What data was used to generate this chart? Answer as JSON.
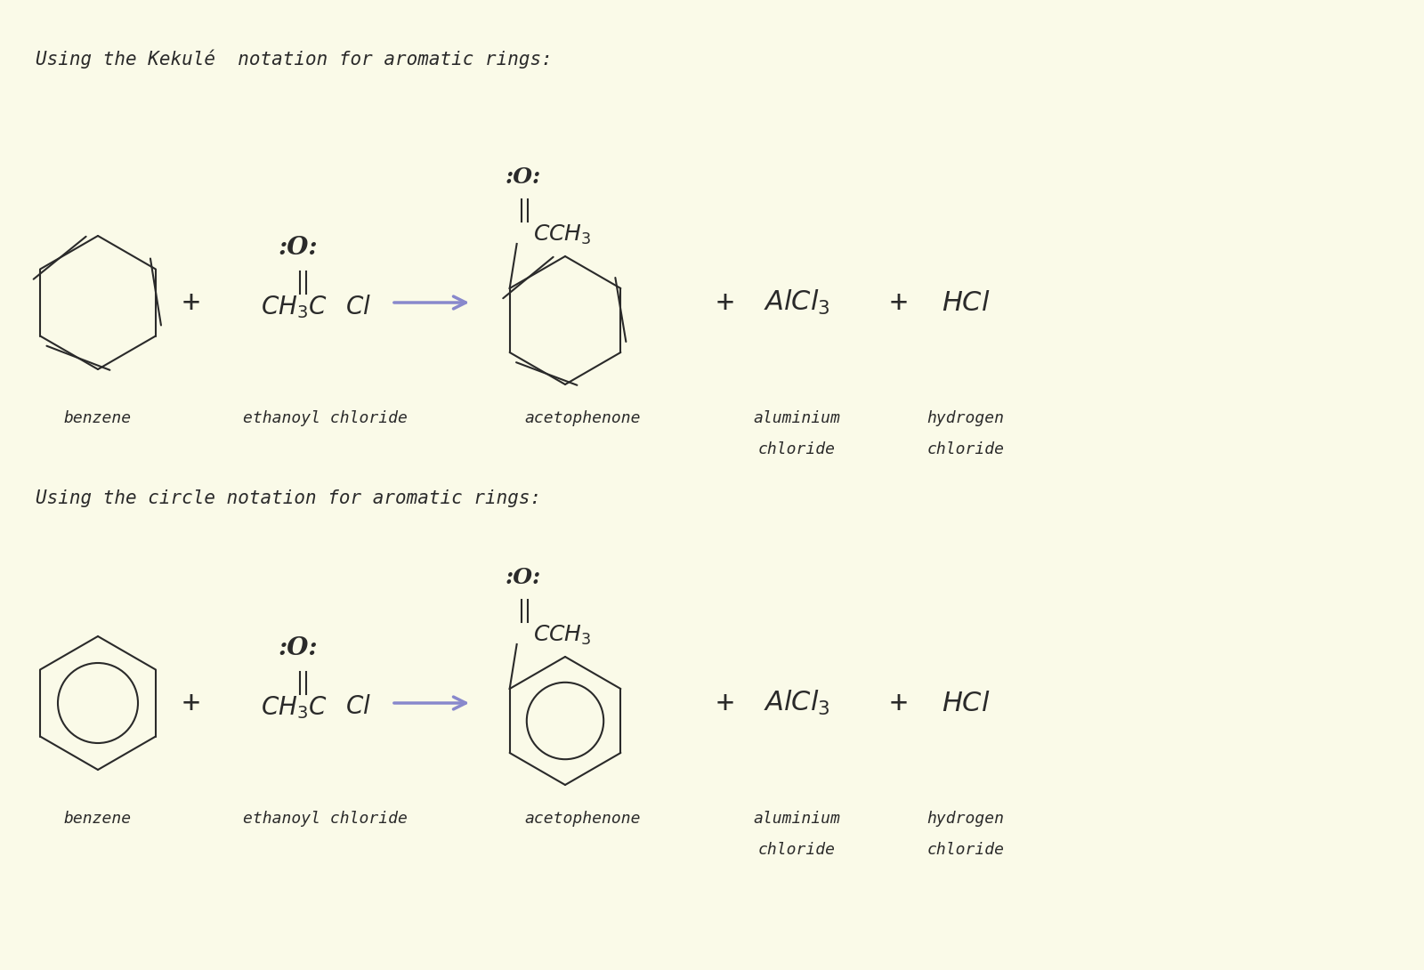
{
  "bg_color": "#fafae8",
  "line_color": "#2a2a2a",
  "arrow_color": "#8888cc",
  "label_color": "#1a1a1a",
  "heading1": "Using the Kekulé  notation for aromatic rings:",
  "heading2": "Using the circle notation for aromatic rings:",
  "label_benzene": "benzene",
  "label_ethanoyl": "ethanoyl chloride",
  "label_acetophenone": "acetophenone",
  "label_aluminium1": "aluminium",
  "label_aluminium2": "chloride",
  "label_hydrogen1": "hydrogen",
  "label_hydrogen2": "chloride",
  "heading_fontsize": 15,
  "label_fontsize": 13,
  "chem_fontsize": 18
}
